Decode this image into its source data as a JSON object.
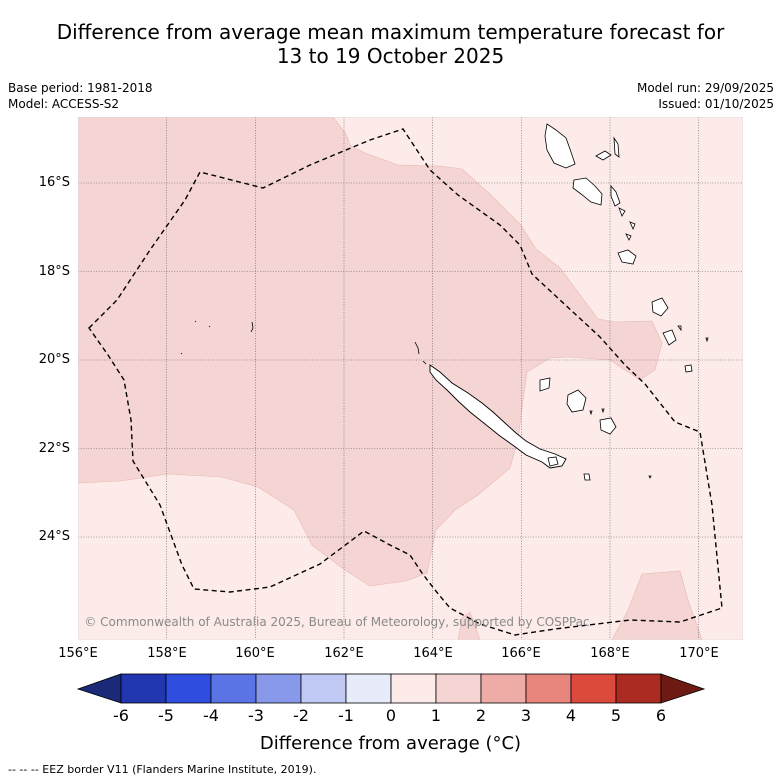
{
  "title_line1": "Difference from average mean maximum temperature forecast for",
  "title_line2": "13 to 19 October 2025",
  "base_period": "Base period: 1981-2018",
  "model": "Model: ACCESS-S2",
  "model_run": "Model run: 29/09/2025",
  "issued": "Issued: 01/10/2025",
  "copyright": "© Commonwealth of Australia 2025, Bureau of Meteorology, supported by COSPPac",
  "lat_labels": [
    "16°S",
    "18°S",
    "20°S",
    "22°S",
    "24°S"
  ],
  "lon_labels": [
    "156°E",
    "158°E",
    "160°E",
    "162°E",
    "164°E",
    "166°E",
    "168°E",
    "170°E"
  ],
  "colorbar": {
    "title": "Difference from average (°C)",
    "ticks": [
      "-6",
      "-5",
      "-4",
      "-3",
      "-2",
      "-1",
      "0",
      "1",
      "2",
      "3",
      "4",
      "5",
      "6"
    ],
    "colors": [
      "#1a2a78",
      "#2236b0",
      "#2f4ee0",
      "#5a74e6",
      "#8899ec",
      "#c0c8f4",
      "#e8ecfa",
      "#fcebe8",
      "#f5d5d3",
      "#efaca7",
      "#e8857c",
      "#db4a3c",
      "#ab2a22",
      "#6e1a14"
    ]
  },
  "legend_footer": "-- -- -- EEZ border V11 (Flanders Marine Institute, 2019).",
  "colors": {
    "zone_0_1": "#fcebe8",
    "zone_1_2": "#f5d5d3",
    "eez": "#000000",
    "grid": "#555555"
  }
}
